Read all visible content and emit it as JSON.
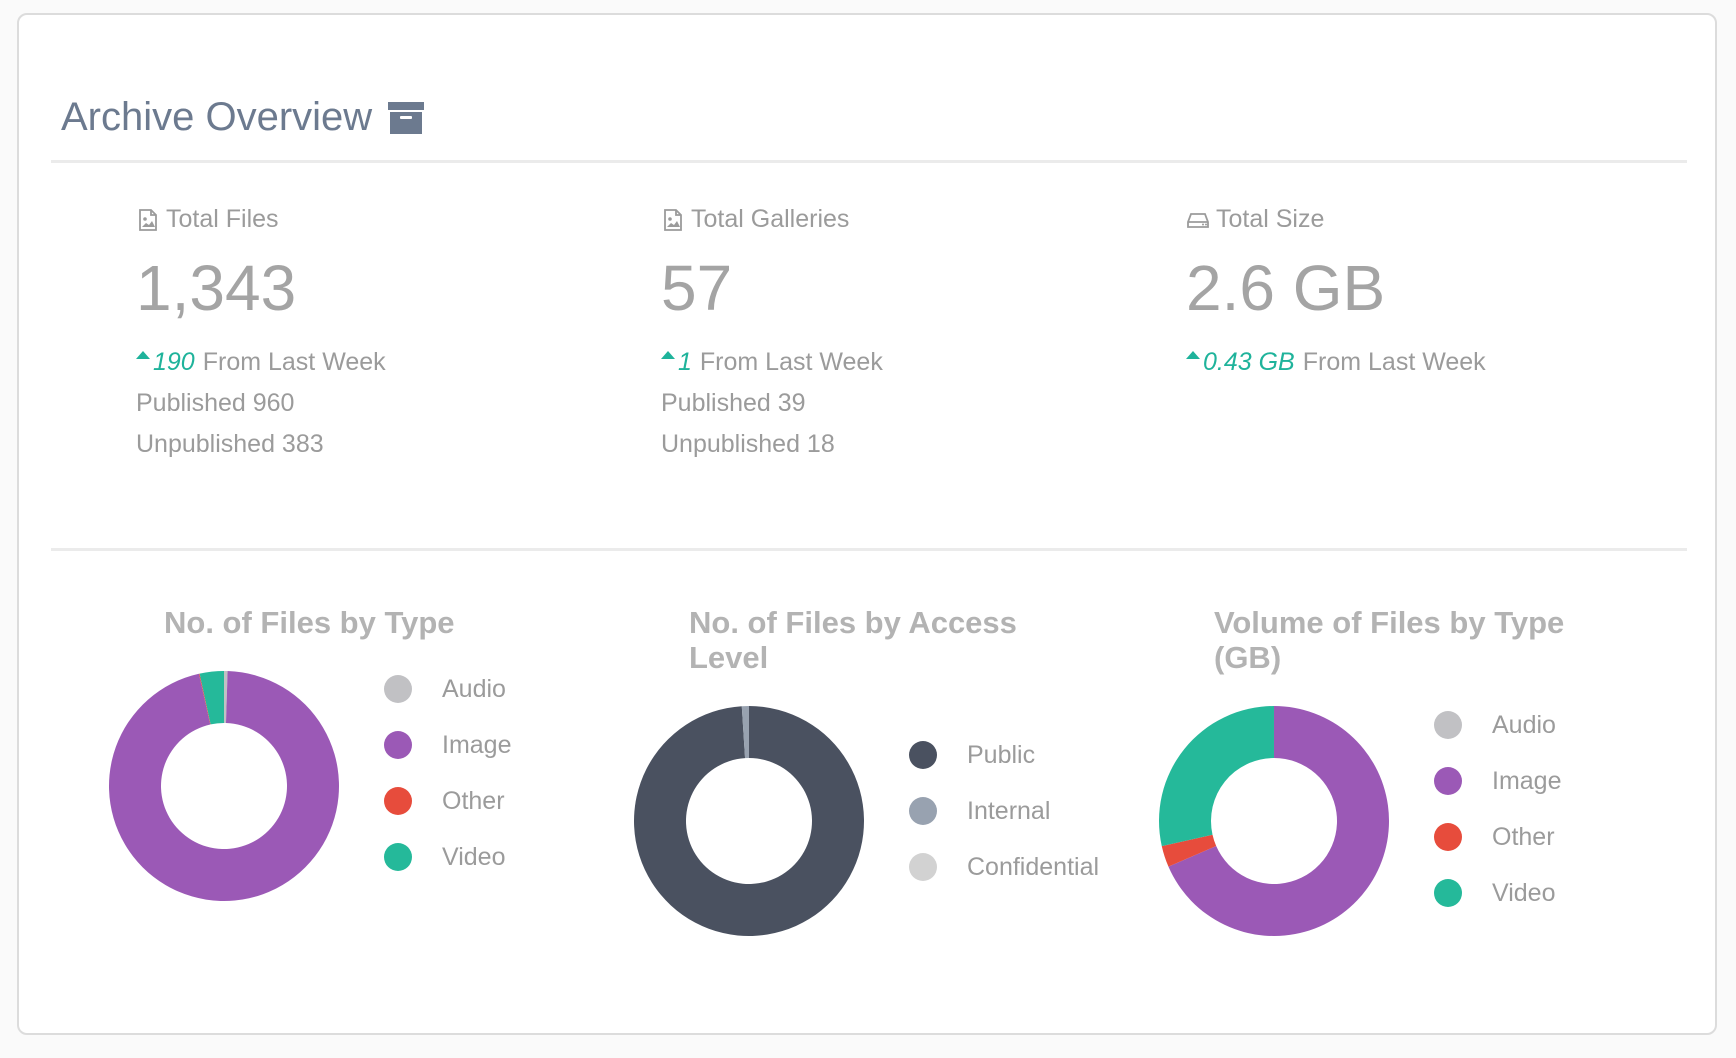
{
  "header": {
    "title": "Archive Overview",
    "icon": "archive-icon"
  },
  "stats": [
    {
      "label": "Total Files",
      "icon": "image-file-icon",
      "value": "1,343",
      "delta": "190",
      "delta_suffix": "From Last Week",
      "published": "Published 960",
      "unpublished": "Unpublished 383"
    },
    {
      "label": "Total Galleries",
      "icon": "image-file-icon",
      "value": "57",
      "delta": "1",
      "delta_suffix": "From Last Week",
      "published": "Published 39",
      "unpublished": "Unpublished 18"
    },
    {
      "label": "Total Size",
      "icon": "hard-drive-icon",
      "value": "2.6 GB",
      "delta": "0.43 GB",
      "delta_suffix": "From Last Week"
    }
  ],
  "colors": {
    "accent": "#1fb39b",
    "audio": "#c1c1c4",
    "image": "#9b59b6",
    "other": "#e74c3c",
    "video": "#25b99a",
    "public": "#4a5160",
    "internal": "#98a2b0",
    "confidential": "#d2d2d2"
  },
  "chart_data": [
    {
      "type": "pie",
      "title": "No. of Files by Type",
      "categories": [
        "Audio",
        "Image",
        "Other",
        "Video"
      ],
      "values": [
        0.5,
        96.0,
        0.1,
        3.4
      ],
      "colors": [
        "#c1c1c4",
        "#9b59b6",
        "#e74c3c",
        "#25b99a"
      ],
      "legend": "right"
    },
    {
      "type": "pie",
      "title": "No. of Files by Access Level",
      "categories": [
        "Public",
        "Internal",
        "Confidential"
      ],
      "values": [
        99.0,
        1.0,
        0.0
      ],
      "colors": [
        "#4a5160",
        "#98a2b0",
        "#d2d2d2"
      ],
      "legend": "right"
    },
    {
      "type": "pie",
      "title": "Volume of Files by Type (GB)",
      "categories": [
        "Audio",
        "Image",
        "Other",
        "Video"
      ],
      "values": [
        0.0,
        68.5,
        3.0,
        28.5
      ],
      "colors": [
        "#c1c1c4",
        "#9b59b6",
        "#e74c3c",
        "#25b99a"
      ],
      "legend": "right"
    }
  ]
}
